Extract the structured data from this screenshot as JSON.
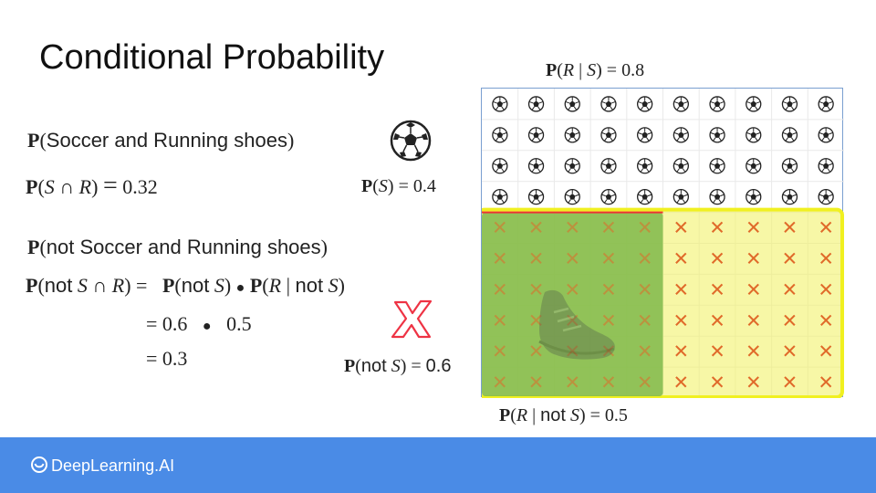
{
  "title": "Conditional Probability",
  "left": {
    "line1": {
      "p": "P",
      "text": "Soccer and Running shoes"
    },
    "line2": {
      "p": "P",
      "s": "S",
      "cap": "∩",
      "r": "R",
      "eq": "=",
      "value": "0.32"
    },
    "line3": {
      "p": "P",
      "text": "not Soccer and Running shoes"
    },
    "line4": {
      "p": "P",
      "not": "not",
      "s": "S",
      "cap": "∩",
      "r": "R",
      "eq": "=",
      "p2": "P",
      "not2": "not",
      "s2": "S",
      "dot": "●",
      "p3": "P",
      "r3": "R",
      "bar": "|",
      "not3": "not",
      "s3": "S"
    },
    "line5": {
      "eq": "=",
      "a": "0.6",
      "dot": "●",
      "b": "0.5"
    },
    "line6": {
      "eq": "=",
      "value": "0.3"
    }
  },
  "labels": {
    "ps": {
      "p": "P",
      "s": "S",
      "eq": "=",
      "value": "0.4"
    },
    "pnots": {
      "p": "P",
      "not": "not",
      "s": "S",
      "eq": "=",
      "value": "0.6"
    },
    "prs": {
      "p": "P",
      "r": "R",
      "bar": "|",
      "s": "S",
      "eq": "=",
      "value": "0.8"
    },
    "prnots": {
      "p": "P",
      "r": "R",
      "bar": "|",
      "not": "not",
      "s": "S",
      "eq": "=",
      "value": "0.5"
    }
  },
  "grid": {
    "columns": 10,
    "rows": 10,
    "soccer_rows": 4,
    "running_columns_in_not_soccer": 5,
    "x_mark": "✕",
    "colors": {
      "x": "#e06a2a",
      "green": "#7fb84a",
      "yellow": "#f2f26a",
      "yellow_border": "#f0f020",
      "red_line": "#e33"
    }
  },
  "footer": {
    "brand": "DeepLearning.AI",
    "color": "#4a8be6"
  }
}
